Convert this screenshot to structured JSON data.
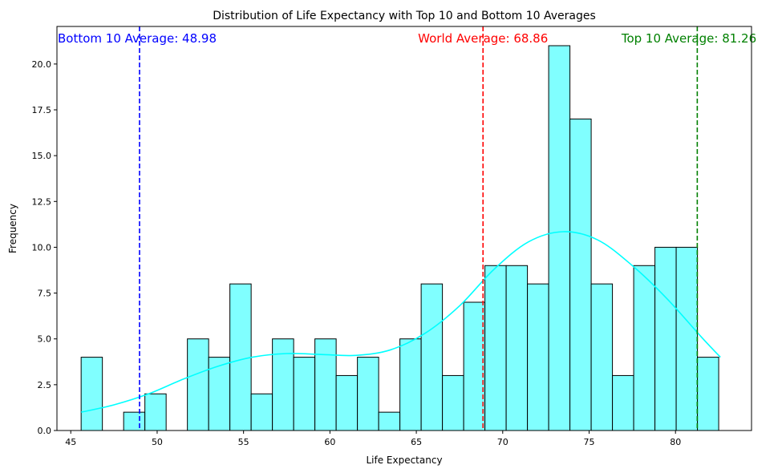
{
  "chart_data": {
    "type": "bar",
    "title": "Distribution of Life Expectancy with Top 10 and Bottom 10 Averages",
    "xlabel": "Life Expectancy",
    "ylabel": "Frequency",
    "xlim": [
      44.2,
      84.4
    ],
    "ylim": [
      0,
      22.05
    ],
    "xticks": [
      45,
      50,
      55,
      60,
      65,
      70,
      75,
      80
    ],
    "yticks": [
      0.0,
      2.5,
      5.0,
      7.5,
      10.0,
      12.5,
      15.0,
      17.5,
      20.0
    ],
    "ytick_labels": [
      "0.0",
      "2.5",
      "5.0",
      "7.5",
      "10.0",
      "12.5",
      "15.0",
      "17.5",
      "20.0"
    ],
    "bins": {
      "start": 45.6,
      "width": 1.23,
      "counts": [
        4,
        0,
        1,
        2,
        0,
        5,
        4,
        8,
        2,
        5,
        4,
        5,
        3,
        4,
        1,
        5,
        8,
        3,
        7,
        9,
        9,
        8,
        21,
        17,
        8,
        3,
        9,
        10,
        10,
        4
      ]
    },
    "bar_color": "#80ffff",
    "bar_edge_color": "#000000",
    "kde": {
      "color": "#00ffff",
      "x": [
        45.6,
        47.5,
        49.5,
        51.5,
        53.5,
        55.5,
        57.5,
        59.5,
        61.5,
        63.5,
        65.5,
        67.5,
        69.5,
        71.5,
        73.5,
        75.5,
        77.5,
        79.5,
        81.5,
        82.6
      ],
      "y": [
        1.0,
        1.4,
        2.0,
        2.8,
        3.5,
        4.0,
        4.2,
        4.15,
        4.1,
        4.4,
        5.3,
        6.8,
        8.8,
        10.3,
        10.85,
        10.4,
        9.0,
        7.2,
        5.1,
        4.0
      ]
    },
    "reference_lines": [
      {
        "label": "Bottom 10 Average: 48.98",
        "value": 48.98,
        "color": "#0000ff",
        "label_anchor": "start"
      },
      {
        "label": "World Average: 68.86",
        "value": 68.86,
        "color": "#ff0000",
        "label_anchor": "middle"
      },
      {
        "label": "Top 10 Average: 81.26",
        "value": 81.26,
        "color": "#008000",
        "label_anchor": "middle"
      }
    ]
  }
}
